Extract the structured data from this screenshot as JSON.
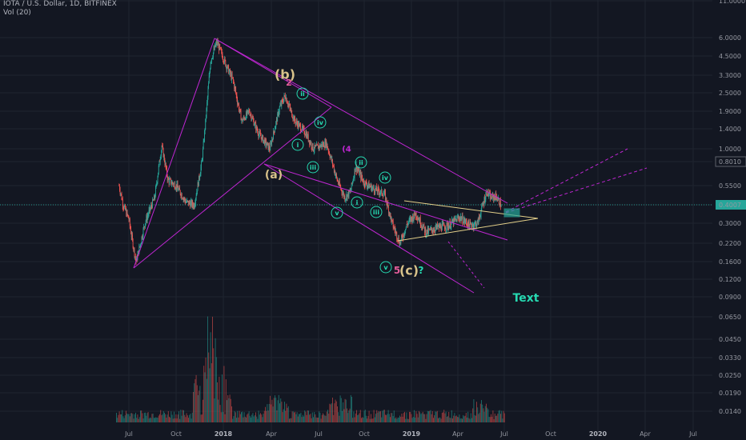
{
  "header": {
    "symbol_line": "IOTA / U.S. Dollar, 1D, BITFINEX",
    "vol_line": "Vol (20)"
  },
  "colors": {
    "background": "#131722",
    "grid": "#1f2430",
    "channel": "#c026d3",
    "triangle": "#e4d08a",
    "projection": "#c026d3",
    "current_price_line": "#26a69a",
    "up_candle": "#26a69a",
    "down_candle": "#ef5350",
    "wave_teal": "#26d9b1",
    "wave_tan": "#d8c28a",
    "wave_pink": "#e35d9a"
  },
  "chart_data": {
    "type": "candlestick",
    "y_axis": {
      "scale": "log",
      "tick_labels": [
        "11.0000",
        "6.0000",
        "4.5000",
        "3.3000",
        "2.5000",
        "1.9000",
        "1.4000",
        "1.0000",
        "0.8010",
        "0.5500",
        "0.4007",
        "0.3000",
        "0.2200",
        "0.1600",
        "0.1200",
        "0.0900",
        "0.0650",
        "0.0450",
        "0.0330",
        "0.0250",
        "0.0190",
        "0.0140"
      ],
      "highlighted": [
        "0.8010",
        "0.4007"
      ]
    },
    "x_axis": {
      "tick_labels": [
        "Jul",
        "Oct",
        "2018",
        "Apr",
        "Jul",
        "Oct",
        "2019",
        "Apr",
        "Jul",
        "Oct",
        "2020",
        "Apr",
        "Jul"
      ],
      "bold_labels": [
        "2018",
        "2019",
        "2020"
      ]
    },
    "last_price": "0.4007",
    "price_path": [
      [
        "2017-06-12",
        0.55
      ],
      [
        "2017-06-20",
        0.4
      ],
      [
        "2017-07-01",
        0.32
      ],
      [
        "2017-07-15",
        0.16
      ],
      [
        "2017-08-01",
        0.3
      ],
      [
        "2017-08-20",
        0.45
      ],
      [
        "2017-09-03",
        1.05
      ],
      [
        "2017-09-15",
        0.6
      ],
      [
        "2017-10-01",
        0.55
      ],
      [
        "2017-10-20",
        0.42
      ],
      [
        "2017-11-05",
        0.4
      ],
      [
        "2017-11-20",
        0.8
      ],
      [
        "2017-12-07",
        4.2
      ],
      [
        "2017-12-19",
        5.6
      ],
      [
        "2018-01-05",
        4.0
      ],
      [
        "2018-01-20",
        3.0
      ],
      [
        "2018-02-06",
        1.6
      ],
      [
        "2018-02-20",
        1.9
      ],
      [
        "2018-03-10",
        1.3
      ],
      [
        "2018-04-01",
        1.0
      ],
      [
        "2018-04-20",
        2.0
      ],
      [
        "2018-05-01",
        2.4
      ],
      [
        "2018-05-20",
        1.6
      ],
      [
        "2018-06-10",
        1.3
      ],
      [
        "2018-06-25",
        1.0
      ],
      [
        "2018-07-20",
        1.1
      ],
      [
        "2018-08-10",
        0.6
      ],
      [
        "2018-08-25",
        0.45
      ],
      [
        "2018-09-05",
        0.5
      ],
      [
        "2018-09-15",
        0.75
      ],
      [
        "2018-10-01",
        0.58
      ],
      [
        "2018-10-20",
        0.52
      ],
      [
        "2018-11-10",
        0.48
      ],
      [
        "2018-11-25",
        0.3
      ],
      [
        "2018-12-10",
        0.22
      ],
      [
        "2018-12-25",
        0.3
      ],
      [
        "2019-01-10",
        0.35
      ],
      [
        "2019-01-30",
        0.26
      ],
      [
        "2019-02-20",
        0.28
      ],
      [
        "2019-03-15",
        0.29
      ],
      [
        "2019-04-05",
        0.33
      ],
      [
        "2019-04-25",
        0.29
      ],
      [
        "2019-05-10",
        0.3
      ],
      [
        "2019-05-28",
        0.5
      ],
      [
        "2019-06-05",
        0.45
      ],
      [
        "2019-06-15",
        0.46
      ],
      [
        "2019-06-25",
        0.4
      ]
    ],
    "annotations": [
      {
        "text": "(b)",
        "color": "wave_tan"
      },
      {
        "text": "2",
        "color": "wave_pink"
      },
      {
        "text": "(a)",
        "color": "wave_tan"
      },
      {
        "text": "ii",
        "color": "wave_teal",
        "circled": true
      },
      {
        "text": "iv",
        "color": "wave_teal",
        "circled": true
      },
      {
        "text": "i",
        "color": "wave_teal",
        "circled": true
      },
      {
        "text": "iii",
        "color": "wave_teal",
        "circled": true
      },
      {
        "text": "(4",
        "color": "projection"
      },
      {
        "text": "ii",
        "color": "wave_teal",
        "circled": true
      },
      {
        "text": "iv",
        "color": "wave_teal",
        "circled": true
      },
      {
        "text": "i",
        "color": "wave_teal",
        "circled": true
      },
      {
        "text": "iii",
        "color": "wave_teal",
        "circled": true
      },
      {
        "text": "v",
        "color": "wave_teal",
        "circled": true
      },
      {
        "text": "v",
        "color": "wave_teal",
        "circled": true
      },
      {
        "text": "5",
        "color": "wave_pink"
      },
      {
        "text": "(c)",
        "color": "wave_tan"
      },
      {
        "text": "?",
        "color": "wave_teal"
      },
      {
        "text": "Text",
        "color": "wave_teal"
      }
    ]
  }
}
